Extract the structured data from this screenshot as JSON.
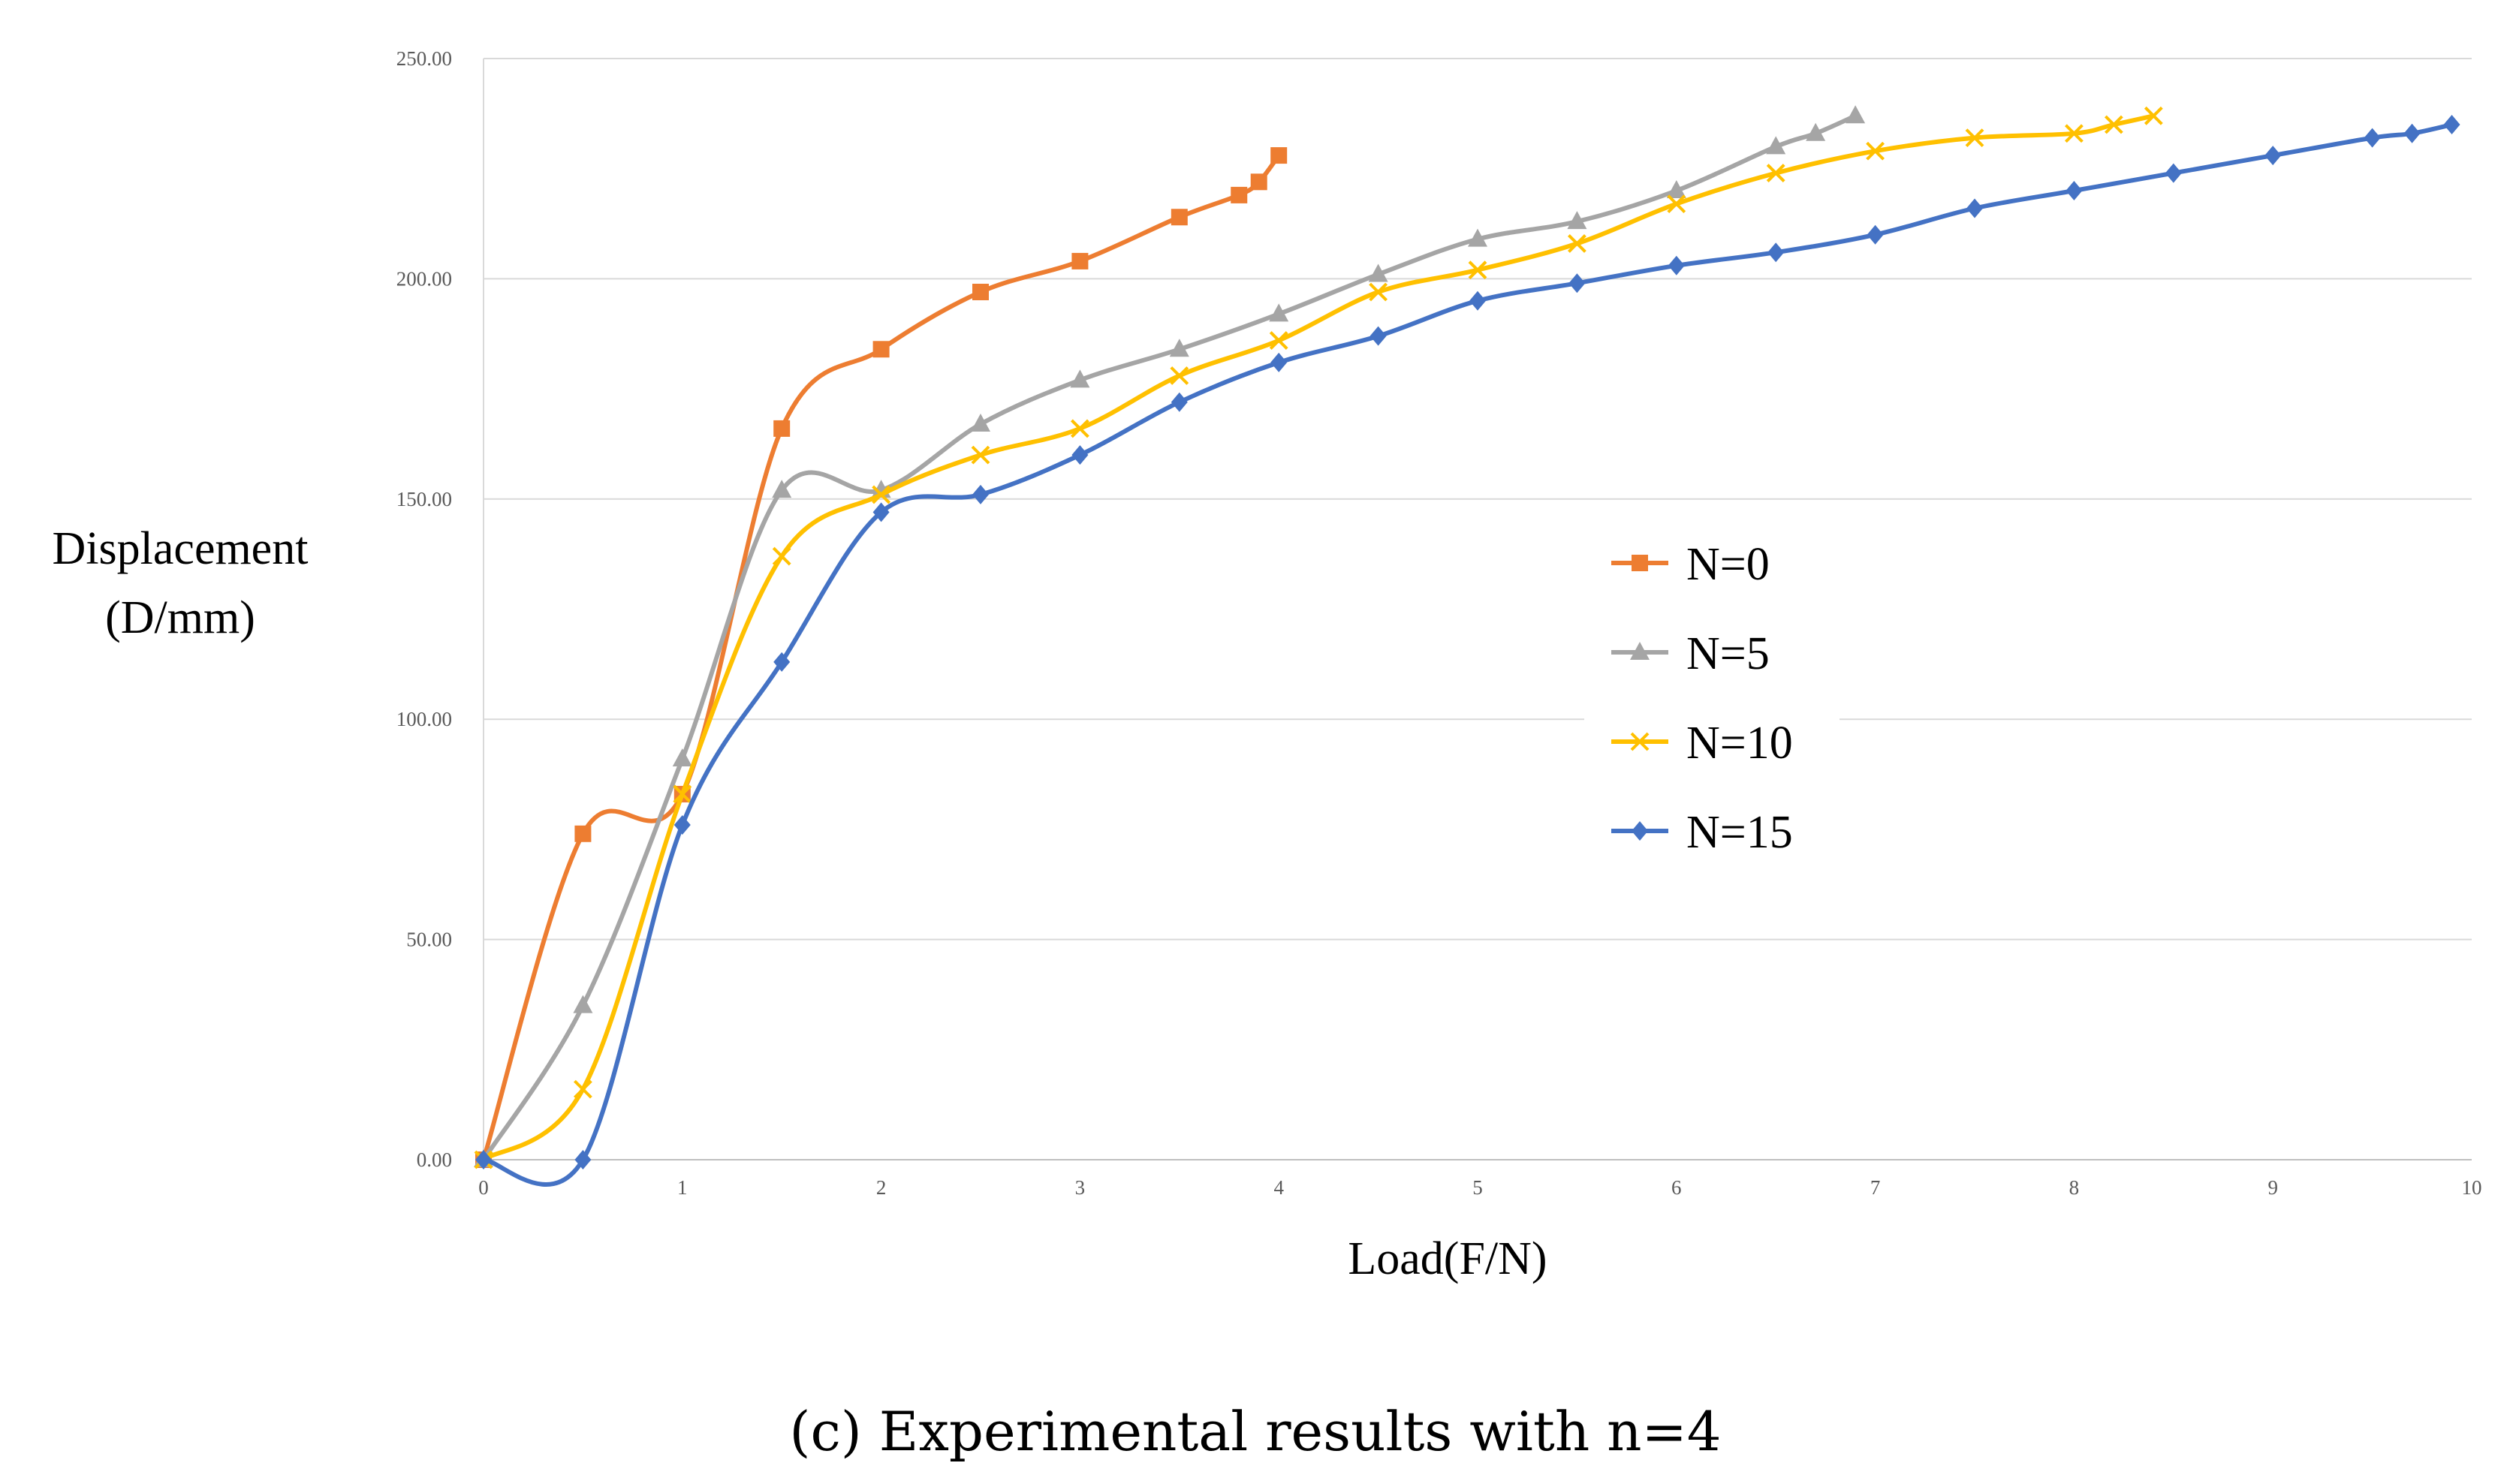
{
  "chart_data": {
    "type": "line",
    "title": "",
    "xlabel": "Load(F/N)",
    "ylabel": [
      "Displacement",
      "(D/mm)"
    ],
    "caption": "(c) Experimental results with n=4",
    "xlim": [
      0,
      10
    ],
    "ylim": [
      0,
      250
    ],
    "x_ticks": [
      "0",
      "1",
      "2",
      "3",
      "4",
      "5",
      "6",
      "7",
      "8",
      "9",
      "10"
    ],
    "y_ticks": [
      "0.00",
      "50.00",
      "100.00",
      "150.00",
      "200.00",
      "250.00"
    ],
    "grid": "horizontal",
    "legend_position": "center-right",
    "series": [
      {
        "name": "N=0",
        "color": "#ED7D31",
        "marker": "square",
        "x": [
          0,
          0.5,
          1,
          1.5,
          2,
          2.5,
          3,
          3.5,
          3.8,
          3.9,
          4
        ],
        "y": [
          0,
          74,
          83,
          166,
          184,
          197,
          204,
          214,
          219,
          222,
          228
        ]
      },
      {
        "name": "N=5",
        "color": "#A5A5A5",
        "marker": "triangle",
        "x": [
          0,
          0.5,
          1,
          1.5,
          2,
          2.5,
          3,
          3.5,
          4,
          4.5,
          5,
          5.5,
          6,
          6.5,
          6.7,
          6.9
        ],
        "y": [
          0,
          35,
          91,
          152,
          152,
          167,
          177,
          184,
          192,
          201,
          209,
          213,
          220,
          230,
          233,
          237
        ]
      },
      {
        "name": "N=10",
        "color": "#FFC000",
        "marker": "x",
        "x": [
          0,
          0.5,
          1,
          1.5,
          2,
          2.5,
          3,
          3.5,
          4,
          4.5,
          5,
          5.5,
          6,
          6.5,
          7,
          7.5,
          8,
          8.2,
          8.4
        ],
        "y": [
          0,
          16,
          83,
          137,
          151,
          160,
          166,
          178,
          186,
          197,
          202,
          208,
          217,
          224,
          229,
          232,
          233,
          235,
          237
        ]
      },
      {
        "name": "N=15",
        "color": "#4472C4",
        "marker": "diamond",
        "x": [
          0,
          0.5,
          1,
          1.5,
          2,
          2.5,
          3,
          3.5,
          4,
          4.5,
          5,
          5.5,
          6,
          6.5,
          7,
          7.5,
          8,
          8.5,
          9,
          9.5,
          9.7,
          9.9
        ],
        "y": [
          0,
          0,
          76,
          113,
          147,
          151,
          160,
          172,
          181,
          187,
          195,
          199,
          203,
          206,
          210,
          216,
          220,
          224,
          228,
          232,
          233,
          235
        ]
      }
    ]
  }
}
